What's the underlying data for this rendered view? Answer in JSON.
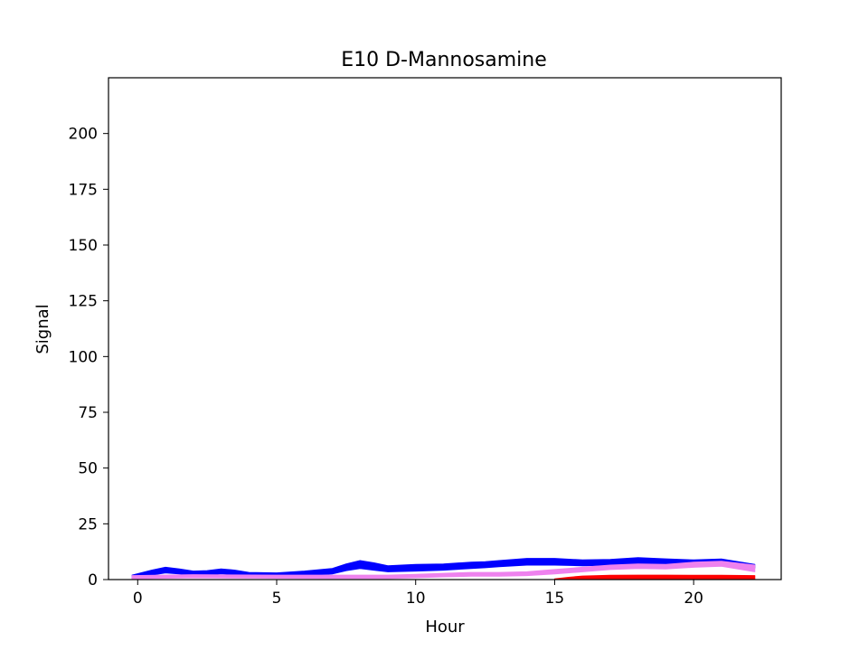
{
  "chart_data": {
    "type": "area",
    "title": "E10 D-Mannosamine",
    "xlabel": "Hour",
    "ylabel": "Signal",
    "xlim": [
      -1.05,
      23.15
    ],
    "ylim": [
      0,
      225
    ],
    "xticks": [
      0,
      5,
      10,
      15,
      20
    ],
    "yticks": [
      0,
      25,
      50,
      75,
      100,
      125,
      150,
      175,
      200
    ],
    "grid": false,
    "series": [
      {
        "color": "#0000ff",
        "x": [
          -0.2,
          0.5,
          1.0,
          1.5,
          2.0,
          2.5,
          3.0,
          3.5,
          4.0,
          5.0,
          6.0,
          7.0,
          7.5,
          8.0,
          8.5,
          9.0,
          10.0,
          11.0,
          12.0,
          12.5,
          13.0,
          14.0,
          15.0,
          16.0,
          17.0,
          18.0,
          19.0,
          20.0,
          21.0,
          22.2
        ],
        "lower": [
          0.5,
          2.0,
          3.0,
          2.5,
          1.8,
          2.0,
          2.6,
          2.2,
          1.5,
          1.2,
          1.8,
          2.5,
          4.0,
          5.0,
          4.2,
          3.5,
          3.8,
          4.2,
          5.0,
          5.3,
          5.8,
          6.5,
          6.5,
          6.2,
          6.5,
          7.0,
          6.8,
          6.5,
          6.8,
          5.2
        ],
        "upper": [
          2.0,
          4.2,
          5.5,
          4.8,
          3.8,
          4.0,
          4.8,
          4.2,
          3.2,
          3.0,
          3.8,
          5.0,
          7.0,
          8.5,
          7.5,
          6.2,
          6.8,
          7.0,
          7.8,
          8.0,
          8.5,
          9.5,
          9.5,
          8.8,
          9.0,
          9.8,
          9.3,
          8.8,
          9.2,
          6.8
        ]
      },
      {
        "color": "#ee82ee",
        "x": [
          -0.2,
          2.0,
          5.0,
          7.0,
          9.0,
          10.0,
          11.0,
          12.0,
          13.0,
          14.0,
          15.0,
          16.0,
          17.0,
          18.0,
          19.0,
          20.0,
          21.0,
          22.2
        ],
        "lower": [
          0.3,
          0.8,
          0.6,
          0.5,
          0.5,
          0.8,
          1.2,
          1.5,
          1.5,
          1.8,
          2.5,
          3.5,
          4.5,
          5.0,
          4.8,
          5.5,
          6.0,
          3.5
        ],
        "upper": [
          1.8,
          2.2,
          2.0,
          2.0,
          2.0,
          2.3,
          2.8,
          3.2,
          3.2,
          3.5,
          4.5,
          5.5,
          6.5,
          7.0,
          6.8,
          7.8,
          8.2,
          6.5
        ]
      },
      {
        "color": "#ff0000",
        "x": [
          15.0,
          15.5,
          16.0,
          17.0,
          18.0,
          19.0,
          20.0,
          21.0,
          22.2
        ],
        "lower": [
          0.0,
          0.0,
          0.0,
          0.0,
          0.0,
          0.0,
          0.0,
          0.0,
          0.0
        ],
        "upper": [
          0.3,
          1.0,
          1.6,
          1.9,
          2.0,
          2.0,
          1.9,
          1.9,
          1.8
        ]
      }
    ]
  }
}
